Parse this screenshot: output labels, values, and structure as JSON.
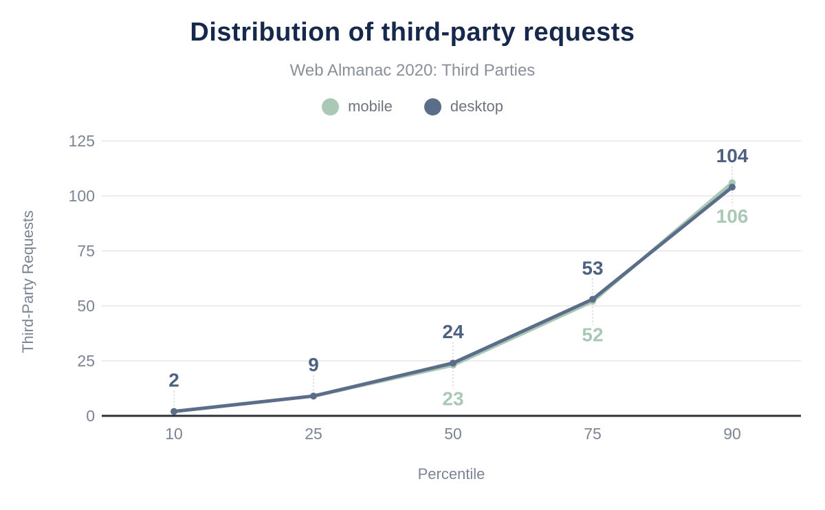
{
  "header": {
    "title": "Distribution of third-party requests",
    "subtitle": "Web Almanac 2020: Third Parties"
  },
  "chart_data": {
    "type": "line",
    "title": "Distribution of third-party requests",
    "subtitle": "Web Almanac 2020: Third Parties",
    "xlabel": "Percentile",
    "ylabel": "Third-Party Requests",
    "categories": [
      "10",
      "25",
      "50",
      "75",
      "90"
    ],
    "yticks": [
      0,
      25,
      50,
      75,
      100,
      125
    ],
    "ylim": [
      0,
      125
    ],
    "grid": "horizontal",
    "legend_position": "top",
    "series": [
      {
        "name": "mobile",
        "color": "#a9c9b6",
        "label_color": "#a9c9b6",
        "values": [
          2,
          9,
          23,
          52,
          106
        ],
        "labels_shown": [
          false,
          false,
          true,
          true,
          true
        ],
        "label_side": "below"
      },
      {
        "name": "desktop",
        "color": "#5b6d89",
        "label_color": "#4e6180",
        "values": [
          2,
          9,
          24,
          53,
          104
        ],
        "labels_shown": [
          true,
          true,
          true,
          true,
          true
        ],
        "label_side": "above"
      }
    ],
    "colors": {
      "title": "#16294d",
      "subtitle": "#8a9099",
      "axis_line": "#2e3033",
      "grid_line": "#ececec",
      "tick_text": "#7b8494",
      "leader_line": "#dadde0"
    }
  }
}
